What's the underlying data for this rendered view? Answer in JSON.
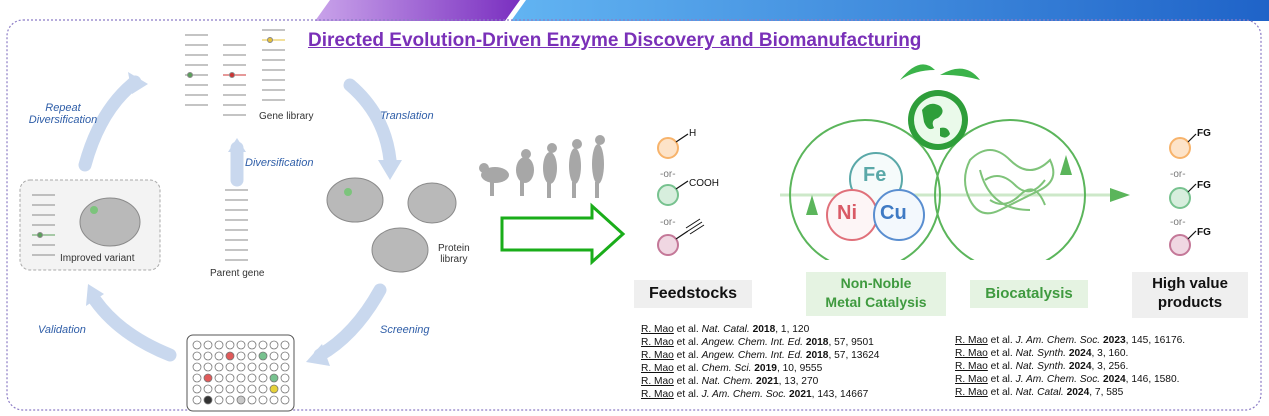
{
  "title": "Directed Evolution-Driven Enzyme Discovery and Biomanufacturing",
  "cycle": {
    "repeat_line1": "Repeat",
    "repeat_line2": "Diversification",
    "translation": "Translation",
    "screening": "Screening",
    "validation": "Validation",
    "diversification": "Diversification",
    "gene_library": "Gene library",
    "parent_gene": "Parent gene",
    "improved_variant": "Improved variant",
    "protein_line1": "Protein",
    "protein_line2": "library"
  },
  "feedstocks": {
    "h": "H",
    "or1": "-or-",
    "cooh": "COOH",
    "or2": "-or-"
  },
  "catalysis": {
    "fe": "Fe",
    "ni": "Ni",
    "cu": "Cu"
  },
  "products": {
    "fg1": "FG",
    "or1": "-or-",
    "fg2": "FG",
    "or2": "-or-",
    "fg3": "FG"
  },
  "labels": {
    "feedstocks": "Feedstocks",
    "nonnoble_line1": "Non-Noble",
    "nonnoble_line2": "Metal Catalysis",
    "biocatalysis": "Biocatalysis",
    "highvalue_line1": "High value",
    "highvalue_line2": "products"
  },
  "refs_left": [
    {
      "author": "R. Mao",
      "etal": " et al. ",
      "journal": "Nat. Catal.",
      "year": "2018",
      "rest": ", 1, 120"
    },
    {
      "author": "R. Mao",
      "etal": " et al. ",
      "journal": "Angew. Chem. Int. Ed.",
      "year": "2018",
      "rest": ", 57, 9501"
    },
    {
      "author": "R. Mao",
      "etal": " et al. ",
      "journal": "Angew. Chem. Int. Ed.",
      "year": "2018",
      "rest": ", 57, 13624"
    },
    {
      "author": "R. Mao",
      "etal": " et al. ",
      "journal": "Chem. Sci.",
      "year": "2019",
      "rest": ", 10, 9555"
    },
    {
      "author": "R. Mao",
      "etal": " et al. ",
      "journal": "Nat. Chem.",
      "year": "2021",
      "rest": ", 13, 270"
    },
    {
      "author": "R. Mao",
      "etal": " et al. ",
      "journal": "J. Am. Chem. Soc.",
      "year": "2021",
      "rest": ", 143, 14667"
    }
  ],
  "refs_right": [
    {
      "author": "R. Mao",
      "etal": " et al. ",
      "journal": "J. Am. Chem. Soc.",
      "year": "2023",
      "rest": ", 145, 16176."
    },
    {
      "author": "R. Mao",
      "etal": " et al. ",
      "journal": "Nat. Synth.",
      "year": "2024",
      "rest": ", 3, 160."
    },
    {
      "author": "R. Mao",
      "etal": " et al. ",
      "journal": "Nat. Synth.",
      "year": "2024",
      "rest": ", 3, 256."
    },
    {
      "author": "R. Mao",
      "etal": " et al. ",
      "journal": "J. Am. Chem. Soc.",
      "year": "2024",
      "rest": ", 146, 1580."
    },
    {
      "author": "R. Mao",
      "etal": " et al. ",
      "journal": "Nat. Catal.",
      "year": "2024",
      "rest": ", 7, 585"
    }
  ],
  "colors": {
    "title": "#7a30b8",
    "cycle_arrow": "#c9d8ee",
    "green_arrow": "#1aad1a",
    "catalysis_green": "#5bb55b",
    "fe": "#5aa8a8",
    "ni": "#e0707a",
    "cu": "#5a8ed0",
    "orange_ball": "#f7b36b",
    "green_ball": "#77c28f",
    "pink_ball": "#c47898",
    "header_purple": "#8b3fc8",
    "header_blue": "#2e8fe0"
  }
}
